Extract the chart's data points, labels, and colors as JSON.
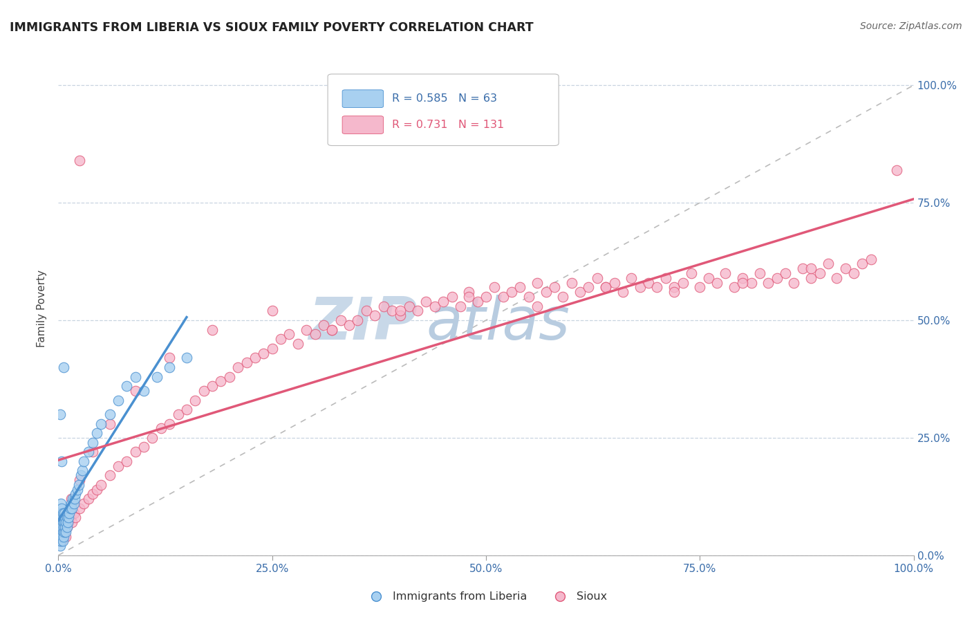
{
  "title": "IMMIGRANTS FROM LIBERIA VS SIOUX FAMILY POVERTY CORRELATION CHART",
  "source": "Source: ZipAtlas.com",
  "ylabel": "Family Poverty",
  "ytick_labels": [
    "0.0%",
    "25.0%",
    "50.0%",
    "75.0%",
    "100.0%"
  ],
  "ytick_values": [
    0.0,
    0.25,
    0.5,
    0.75,
    1.0
  ],
  "xtick_labels": [
    "0.0%",
    "25.0%",
    "50.0%",
    "75.0%",
    "100.0%"
  ],
  "xtick_values": [
    0.0,
    0.25,
    0.5,
    0.75,
    1.0
  ],
  "liberia_R": 0.585,
  "liberia_N": 63,
  "sioux_R": 0.731,
  "sioux_N": 131,
  "liberia_color": "#A8D0F0",
  "liberia_line_color": "#4A90D0",
  "sioux_color": "#F5B8CC",
  "sioux_line_color": "#E05878",
  "diagonal_color": "#BBBBBB",
  "background_color": "#FFFFFF",
  "watermark_zip": "ZIP",
  "watermark_atlas": "atlas",
  "watermark_color": "#C8D8E8",
  "liberia_scatter_x": [
    0.001,
    0.001,
    0.001,
    0.002,
    0.002,
    0.002,
    0.002,
    0.003,
    0.003,
    0.003,
    0.003,
    0.003,
    0.004,
    0.004,
    0.004,
    0.004,
    0.005,
    0.005,
    0.005,
    0.005,
    0.006,
    0.006,
    0.006,
    0.007,
    0.007,
    0.007,
    0.008,
    0.008,
    0.009,
    0.009,
    0.01,
    0.01,
    0.011,
    0.011,
    0.012,
    0.013,
    0.014,
    0.015,
    0.016,
    0.017,
    0.018,
    0.019,
    0.02,
    0.022,
    0.024,
    0.026,
    0.028,
    0.03,
    0.035,
    0.04,
    0.045,
    0.05,
    0.06,
    0.07,
    0.08,
    0.09,
    0.1,
    0.115,
    0.13,
    0.15,
    0.002,
    0.004,
    0.006
  ],
  "liberia_scatter_y": [
    0.03,
    0.05,
    0.07,
    0.02,
    0.04,
    0.06,
    0.08,
    0.03,
    0.05,
    0.07,
    0.09,
    0.11,
    0.04,
    0.06,
    0.08,
    0.1,
    0.03,
    0.05,
    0.07,
    0.09,
    0.04,
    0.06,
    0.08,
    0.05,
    0.07,
    0.09,
    0.06,
    0.08,
    0.05,
    0.07,
    0.06,
    0.08,
    0.07,
    0.09,
    0.08,
    0.09,
    0.1,
    0.11,
    0.1,
    0.12,
    0.11,
    0.12,
    0.13,
    0.14,
    0.15,
    0.17,
    0.18,
    0.2,
    0.22,
    0.24,
    0.26,
    0.28,
    0.3,
    0.33,
    0.36,
    0.38,
    0.35,
    0.38,
    0.4,
    0.42,
    0.3,
    0.2,
    0.4
  ],
  "sioux_scatter_x": [
    0.001,
    0.002,
    0.003,
    0.004,
    0.005,
    0.006,
    0.007,
    0.008,
    0.009,
    0.01,
    0.012,
    0.014,
    0.016,
    0.018,
    0.02,
    0.025,
    0.03,
    0.035,
    0.04,
    0.045,
    0.05,
    0.06,
    0.07,
    0.08,
    0.09,
    0.1,
    0.11,
    0.12,
    0.13,
    0.14,
    0.15,
    0.16,
    0.17,
    0.18,
    0.19,
    0.2,
    0.21,
    0.22,
    0.23,
    0.24,
    0.25,
    0.26,
    0.27,
    0.28,
    0.29,
    0.3,
    0.31,
    0.32,
    0.33,
    0.34,
    0.35,
    0.36,
    0.37,
    0.38,
    0.39,
    0.4,
    0.41,
    0.42,
    0.43,
    0.44,
    0.45,
    0.46,
    0.47,
    0.48,
    0.49,
    0.5,
    0.51,
    0.52,
    0.53,
    0.54,
    0.55,
    0.56,
    0.57,
    0.58,
    0.59,
    0.6,
    0.61,
    0.62,
    0.63,
    0.64,
    0.65,
    0.66,
    0.67,
    0.68,
    0.69,
    0.7,
    0.71,
    0.72,
    0.73,
    0.74,
    0.75,
    0.76,
    0.77,
    0.78,
    0.79,
    0.8,
    0.81,
    0.82,
    0.83,
    0.84,
    0.85,
    0.86,
    0.87,
    0.88,
    0.89,
    0.9,
    0.91,
    0.92,
    0.93,
    0.94,
    0.003,
    0.008,
    0.015,
    0.025,
    0.04,
    0.06,
    0.09,
    0.13,
    0.18,
    0.25,
    0.32,
    0.4,
    0.48,
    0.56,
    0.64,
    0.72,
    0.8,
    0.88,
    0.95,
    0.98,
    0.025
  ],
  "sioux_scatter_y": [
    0.03,
    0.04,
    0.05,
    0.03,
    0.06,
    0.04,
    0.05,
    0.07,
    0.04,
    0.06,
    0.07,
    0.08,
    0.07,
    0.09,
    0.08,
    0.1,
    0.11,
    0.12,
    0.13,
    0.14,
    0.15,
    0.17,
    0.19,
    0.2,
    0.22,
    0.23,
    0.25,
    0.27,
    0.28,
    0.3,
    0.31,
    0.33,
    0.35,
    0.36,
    0.37,
    0.38,
    0.4,
    0.41,
    0.42,
    0.43,
    0.44,
    0.46,
    0.47,
    0.45,
    0.48,
    0.47,
    0.49,
    0.48,
    0.5,
    0.49,
    0.5,
    0.52,
    0.51,
    0.53,
    0.52,
    0.51,
    0.53,
    0.52,
    0.54,
    0.53,
    0.54,
    0.55,
    0.53,
    0.56,
    0.54,
    0.55,
    0.57,
    0.55,
    0.56,
    0.57,
    0.55,
    0.58,
    0.56,
    0.57,
    0.55,
    0.58,
    0.56,
    0.57,
    0.59,
    0.57,
    0.58,
    0.56,
    0.59,
    0.57,
    0.58,
    0.57,
    0.59,
    0.57,
    0.58,
    0.6,
    0.57,
    0.59,
    0.58,
    0.6,
    0.57,
    0.59,
    0.58,
    0.6,
    0.58,
    0.59,
    0.6,
    0.58,
    0.61,
    0.59,
    0.6,
    0.62,
    0.59,
    0.61,
    0.6,
    0.62,
    0.04,
    0.08,
    0.12,
    0.16,
    0.22,
    0.28,
    0.35,
    0.42,
    0.48,
    0.52,
    0.48,
    0.52,
    0.55,
    0.53,
    0.57,
    0.56,
    0.58,
    0.61,
    0.63,
    0.82,
    0.84
  ]
}
